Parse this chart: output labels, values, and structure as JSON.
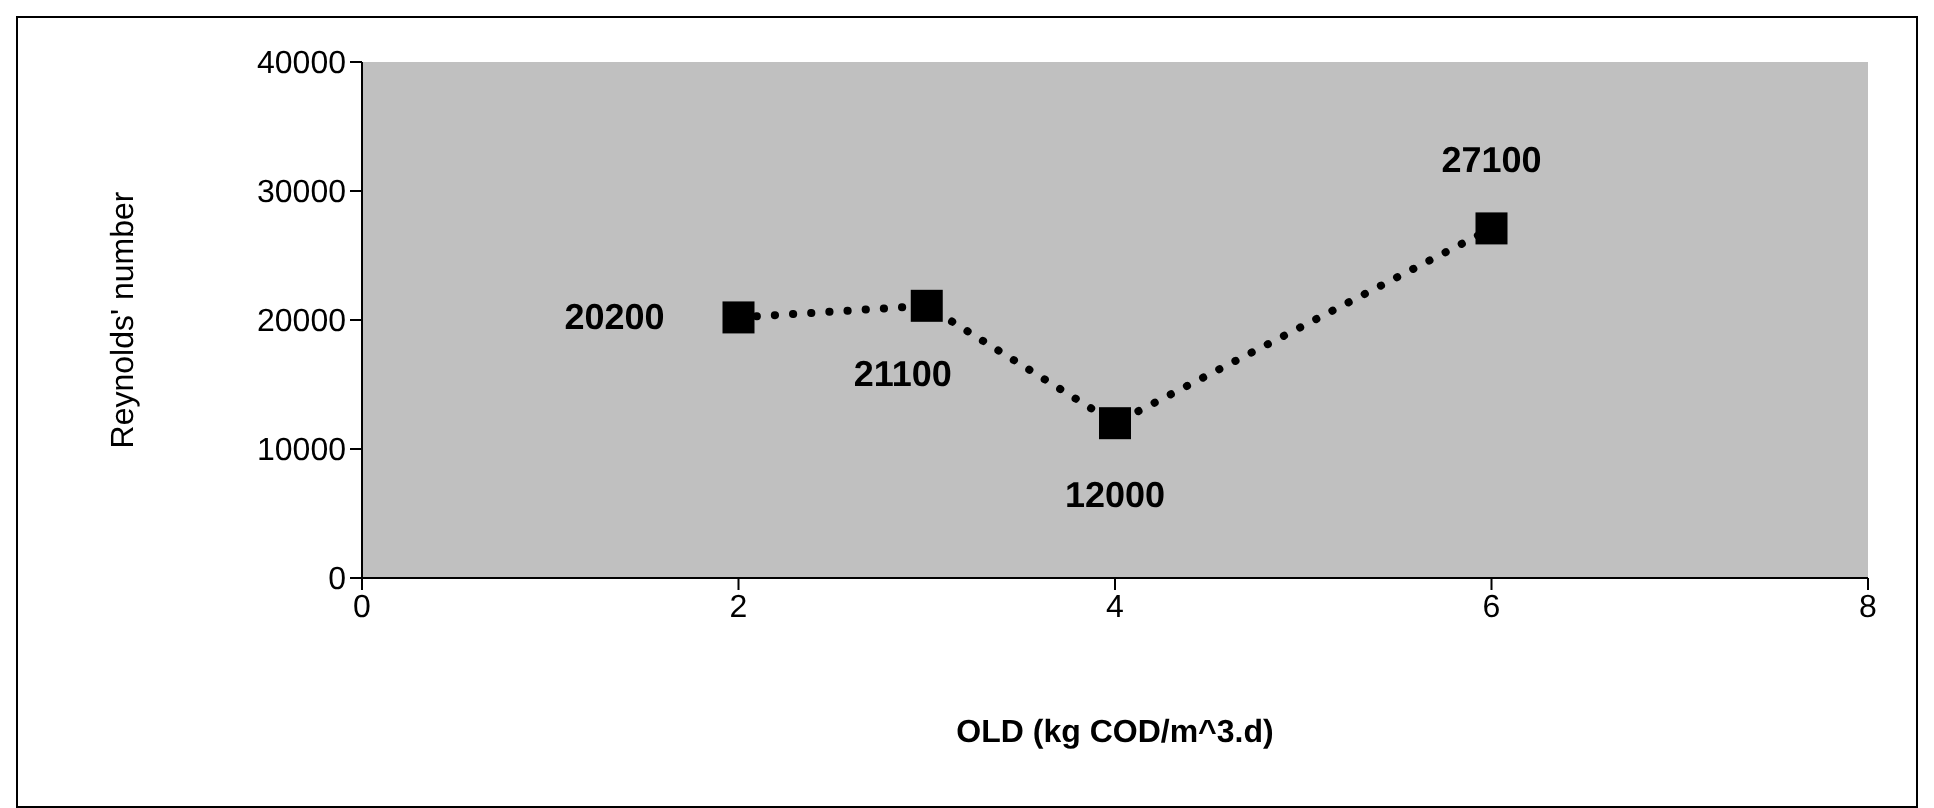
{
  "chart_data": {
    "type": "line",
    "xlabel": "OLD (kg COD/m^3.d)",
    "ylabel": "Reynolds' number",
    "x": [
      2,
      3,
      4,
      6
    ],
    "series": [
      {
        "color": "#000000",
        "values": [
          20200,
          21100,
          12000,
          27100
        ]
      }
    ],
    "xlim": [
      0,
      8
    ],
    "xticks": [
      0,
      2,
      4,
      6,
      8
    ],
    "ylim": [
      0,
      40000
    ],
    "yticks": [
      0,
      10000,
      20000,
      30000,
      40000
    ],
    "grid": false,
    "marker": "square",
    "line_style": "dotted",
    "data_labels": true
  }
}
